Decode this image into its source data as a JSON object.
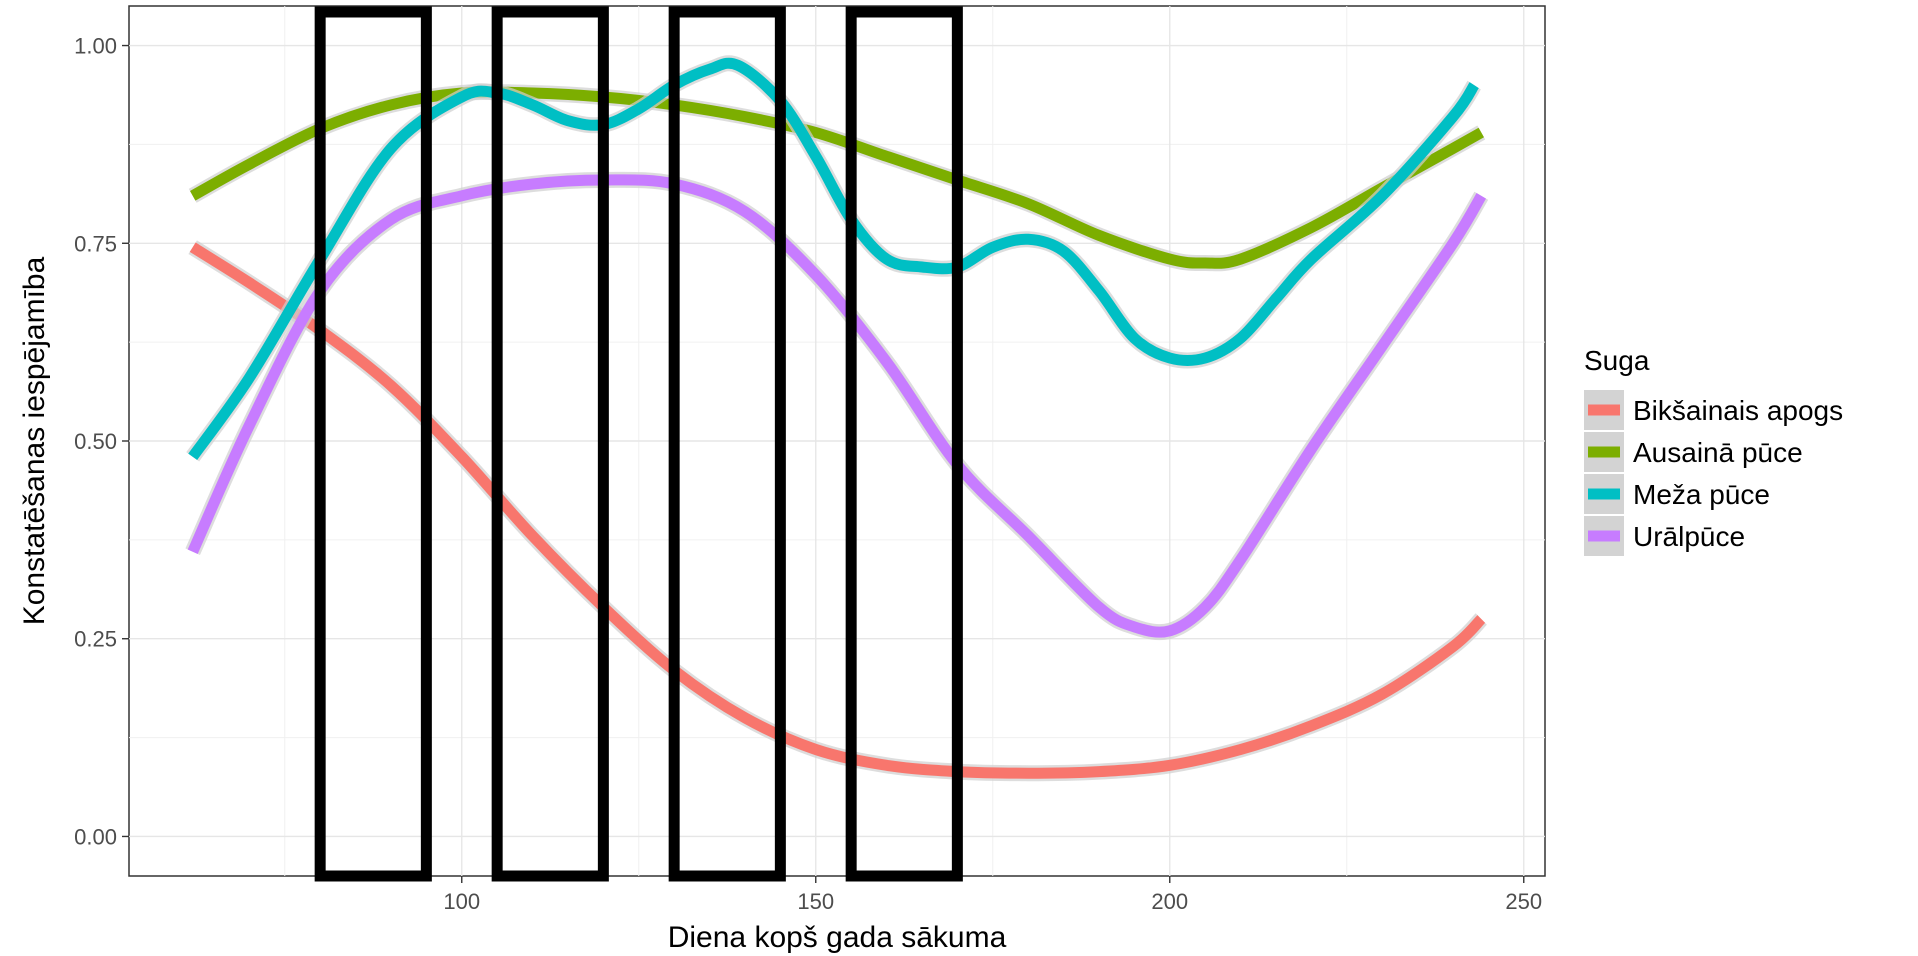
{
  "chart_data": {
    "type": "line",
    "title": "",
    "xlabel": "Diena kopš gada sākuma",
    "ylabel": "Konstatēšanas iespējamība",
    "xlim": [
      53,
      253
    ],
    "ylim": [
      -0.05,
      1.05
    ],
    "x_ticks": [
      100,
      150,
      200,
      250
    ],
    "x_tick_labels": [
      "100",
      "150",
      "200",
      "250"
    ],
    "y_ticks": [
      0,
      0.25,
      0.5,
      0.75,
      1.0
    ],
    "y_tick_labels": [
      "0.00",
      "0.25",
      "0.50",
      "0.75",
      "1.00"
    ],
    "grid": true,
    "legend_title": "Suga",
    "legend_position": "right",
    "series": [
      {
        "name": "Bikšainais apogs",
        "color": "#F8766D",
        "x": [
          62,
          70,
          80,
          90,
          100,
          110,
          120,
          130,
          140,
          150,
          160,
          170,
          180,
          190,
          200,
          210,
          220,
          230,
          240,
          244
        ],
        "y": [
          0.745,
          0.7,
          0.64,
          0.57,
          0.48,
          0.38,
          0.29,
          0.21,
          0.15,
          0.11,
          0.09,
          0.082,
          0.08,
          0.082,
          0.09,
          0.11,
          0.14,
          0.18,
          0.24,
          0.275
        ]
      },
      {
        "name": "Ausainā pūce",
        "color": "#7CAE00",
        "x": [
          62,
          70,
          80,
          90,
          100,
          110,
          120,
          130,
          140,
          150,
          160,
          170,
          180,
          190,
          200,
          205,
          210,
          220,
          230,
          240,
          244
        ],
        "y": [
          0.81,
          0.85,
          0.895,
          0.925,
          0.94,
          0.94,
          0.935,
          0.925,
          0.91,
          0.89,
          0.86,
          0.83,
          0.8,
          0.76,
          0.73,
          0.725,
          0.73,
          0.77,
          0.82,
          0.87,
          0.89
        ]
      },
      {
        "name": "Meža pūce",
        "color": "#00BFC4",
        "x": [
          62,
          70,
          80,
          90,
          100,
          105,
          110,
          115,
          120,
          125,
          130,
          135,
          139,
          145,
          150,
          155,
          160,
          165,
          170,
          175,
          180,
          185,
          190,
          195,
          200,
          205,
          210,
          215,
          220,
          230,
          240,
          243
        ],
        "y": [
          0.48,
          0.58,
          0.73,
          0.87,
          0.935,
          0.94,
          0.925,
          0.905,
          0.9,
          0.92,
          0.95,
          0.97,
          0.975,
          0.93,
          0.86,
          0.78,
          0.73,
          0.72,
          0.72,
          0.745,
          0.755,
          0.74,
          0.69,
          0.63,
          0.605,
          0.605,
          0.63,
          0.68,
          0.73,
          0.81,
          0.91,
          0.95
        ]
      },
      {
        "name": "Urālpūce",
        "color": "#C77CFF",
        "x": [
          62,
          70,
          80,
          90,
          100,
          110,
          120,
          130,
          140,
          150,
          160,
          170,
          180,
          190,
          195,
          200,
          205,
          210,
          220,
          230,
          240,
          244
        ],
        "y": [
          0.36,
          0.52,
          0.69,
          0.78,
          0.81,
          0.825,
          0.83,
          0.825,
          0.79,
          0.71,
          0.6,
          0.47,
          0.38,
          0.29,
          0.265,
          0.26,
          0.29,
          0.35,
          0.49,
          0.62,
          0.75,
          0.81
        ]
      }
    ],
    "highlight_boxes_x": [
      [
        80,
        95
      ],
      [
        105,
        120
      ],
      [
        130,
        145
      ],
      [
        155,
        170
      ]
    ]
  }
}
